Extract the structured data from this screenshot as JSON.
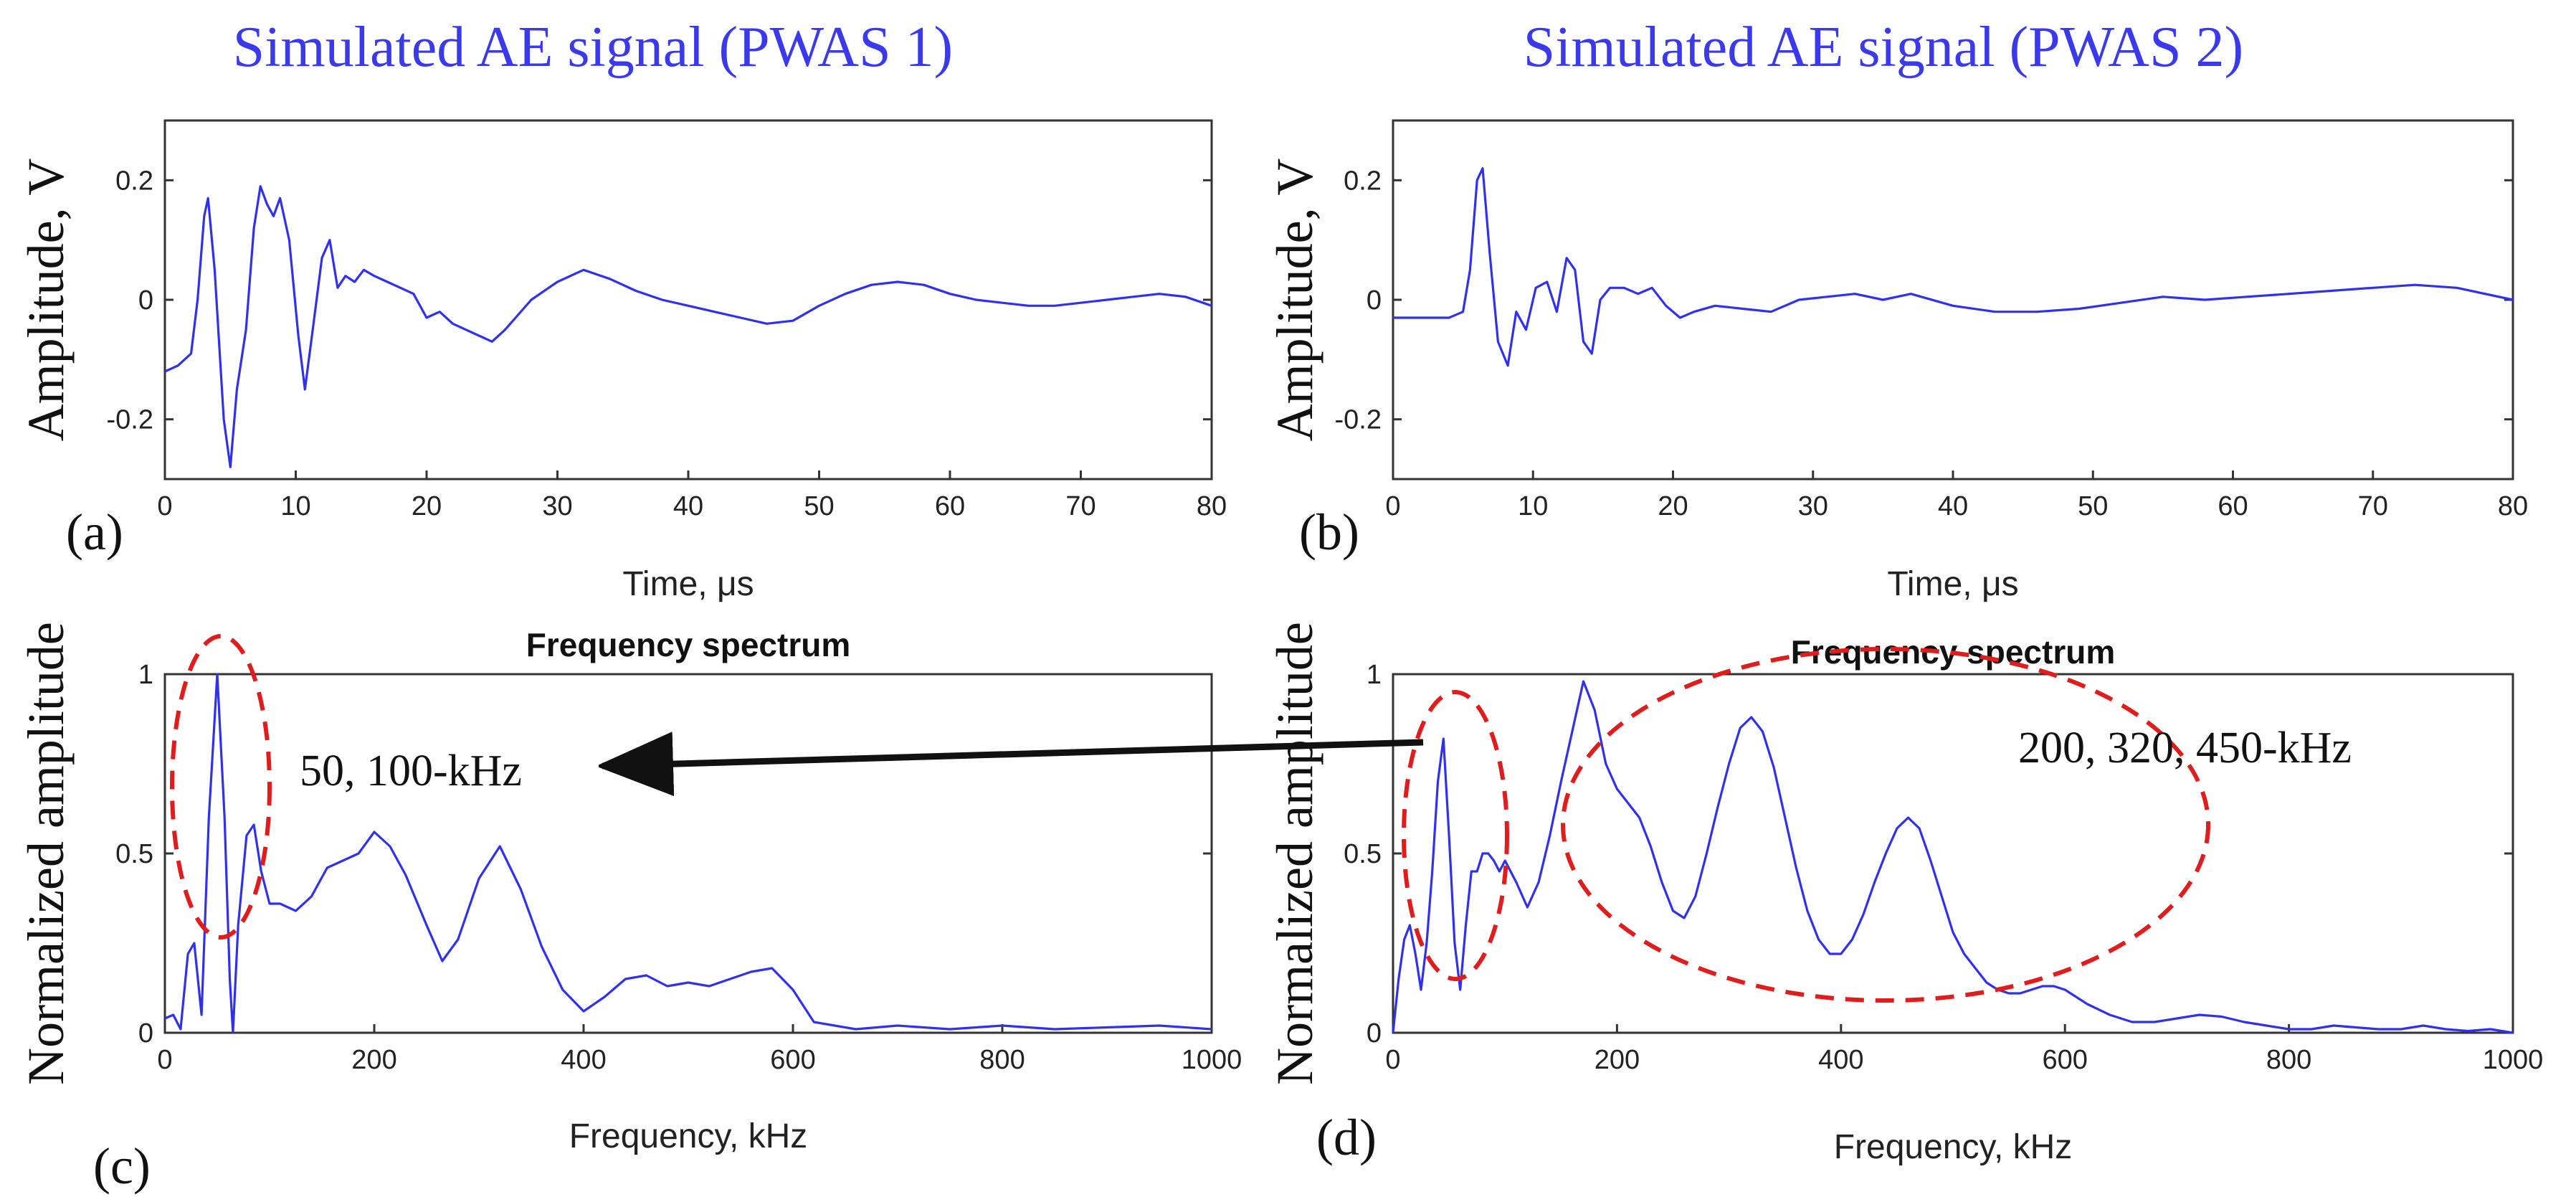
{
  "titles": {
    "left": "Simulated AE signal (PWAS 1)",
    "right": "Simulated AE signal (PWAS 2)"
  },
  "annotations": {
    "left_peaks": "50, 100-kHz",
    "right_peaks": "200, 320, 450-kHz"
  },
  "colors": {
    "title": "#3a3aec",
    "signal": "#3030f0",
    "highlight_ellipse": "#e01c1c",
    "arrow": "#111111"
  },
  "chart_data": [
    {
      "panel": "(a)",
      "type": "line",
      "title": "",
      "xlabel": "Time, μs",
      "ylabel": "Amplitude, V",
      "xlim": [
        0,
        80
      ],
      "ylim": [
        -0.3,
        0.3
      ],
      "xticks": [
        "0",
        "10",
        "20",
        "30",
        "40",
        "50",
        "60",
        "70",
        "80"
      ],
      "yticks": [
        "0.2",
        "0",
        "-0.2"
      ],
      "x": [
        0,
        1,
        2,
        2.5,
        3,
        3.3,
        3.8,
        4.5,
        5,
        5.5,
        6.2,
        6.8,
        7.3,
        7.8,
        8.3,
        8.8,
        9.5,
        10.2,
        10.7,
        11.3,
        12,
        12.6,
        13.2,
        13.8,
        14.5,
        15.2,
        16,
        17,
        18,
        19,
        20,
        21,
        22,
        23,
        24,
        25,
        26,
        28,
        30,
        32,
        34,
        36,
        38,
        40,
        42,
        44,
        46,
        48,
        50,
        52,
        54,
        56,
        58,
        60,
        62,
        64,
        66,
        68,
        70,
        72,
        74,
        76,
        78,
        80
      ],
      "y": [
        -0.12,
        -0.11,
        -0.09,
        0.0,
        0.14,
        0.17,
        0.05,
        -0.2,
        -0.28,
        -0.15,
        -0.05,
        0.12,
        0.19,
        0.16,
        0.14,
        0.17,
        0.1,
        -0.06,
        -0.15,
        -0.05,
        0.07,
        0.1,
        0.02,
        0.04,
        0.03,
        0.05,
        0.04,
        0.03,
        0.02,
        0.01,
        -0.03,
        -0.02,
        -0.04,
        -0.05,
        -0.06,
        -0.07,
        -0.05,
        0.0,
        0.03,
        0.05,
        0.035,
        0.015,
        0.0,
        -0.01,
        -0.02,
        -0.03,
        -0.04,
        -0.035,
        -0.01,
        0.01,
        0.025,
        0.03,
        0.025,
        0.01,
        0.0,
        -0.005,
        -0.01,
        -0.01,
        -0.005,
        0.0,
        0.005,
        0.01,
        0.005,
        -0.01
      ]
    },
    {
      "panel": "(b)",
      "type": "line",
      "title": "",
      "xlabel": "Time, μs",
      "ylabel": "Amplitude, V",
      "xlim": [
        0,
        80
      ],
      "ylim": [
        -0.3,
        0.3
      ],
      "xticks": [
        "0",
        "10",
        "20",
        "30",
        "40",
        "50",
        "60",
        "70",
        "80"
      ],
      "yticks": [
        "0.2",
        "0",
        "-0.2"
      ],
      "x": [
        0,
        2,
        4,
        5,
        5.5,
        6,
        6.4,
        6.9,
        7.5,
        8.2,
        8.8,
        9.5,
        10.2,
        11,
        11.7,
        12.4,
        13,
        13.6,
        14.2,
        14.8,
        15.5,
        16.5,
        17.5,
        18.5,
        19.5,
        20.5,
        21.5,
        23,
        25,
        27,
        29,
        31,
        33,
        35,
        37,
        40,
        43,
        46,
        49,
        52,
        55,
        58,
        61,
        64,
        67,
        70,
        73,
        76,
        80
      ],
      "y": [
        -0.03,
        -0.03,
        -0.03,
        -0.02,
        0.05,
        0.2,
        0.22,
        0.08,
        -0.07,
        -0.11,
        -0.02,
        -0.05,
        0.02,
        0.03,
        -0.02,
        0.07,
        0.05,
        -0.07,
        -0.09,
        0.0,
        0.02,
        0.02,
        0.01,
        0.02,
        -0.01,
        -0.03,
        -0.02,
        -0.01,
        -0.015,
        -0.02,
        0.0,
        0.005,
        0.01,
        0.0,
        0.01,
        -0.01,
        -0.02,
        -0.02,
        -0.015,
        -0.005,
        0.005,
        0.0,
        0.005,
        0.01,
        0.015,
        0.02,
        0.025,
        0.02,
        0.0
      ]
    },
    {
      "panel": "(c)",
      "type": "line",
      "title": "Frequency spectrum",
      "xlabel": "Frequency, kHz",
      "ylabel": "Normalized amplitude",
      "xlim": [
        0,
        1000
      ],
      "ylim": [
        0,
        1
      ],
      "xticks": [
        "0",
        "200",
        "400",
        "600",
        "800",
        "1000"
      ],
      "yticks": [
        "1",
        "0.5",
        "0"
      ],
      "x": [
        0,
        8,
        15,
        22,
        28,
        35,
        42,
        50,
        57,
        62,
        65,
        70,
        78,
        85,
        92,
        100,
        110,
        125,
        140,
        155,
        170,
        185,
        200,
        215,
        230,
        250,
        265,
        280,
        300,
        320,
        340,
        360,
        380,
        400,
        420,
        440,
        460,
        480,
        500,
        520,
        540,
        560,
        580,
        600,
        620,
        660,
        700,
        750,
        800,
        850,
        900,
        950,
        1000
      ],
      "y": [
        0.04,
        0.05,
        0.01,
        0.22,
        0.25,
        0.05,
        0.6,
        1.0,
        0.6,
        0.15,
        0.0,
        0.3,
        0.55,
        0.58,
        0.45,
        0.36,
        0.36,
        0.34,
        0.38,
        0.46,
        0.48,
        0.5,
        0.56,
        0.52,
        0.44,
        0.3,
        0.2,
        0.26,
        0.43,
        0.52,
        0.4,
        0.24,
        0.12,
        0.06,
        0.1,
        0.15,
        0.16,
        0.13,
        0.14,
        0.13,
        0.15,
        0.17,
        0.18,
        0.12,
        0.03,
        0.01,
        0.02,
        0.01,
        0.02,
        0.01,
        0.015,
        0.02,
        0.01
      ]
    },
    {
      "panel": "(d)",
      "type": "line",
      "title": "Frequency spectrum",
      "xlabel": "Frequency, kHz",
      "ylabel": "Normalized amplitude",
      "xlim": [
        0,
        1000
      ],
      "ylim": [
        0,
        1
      ],
      "xticks": [
        "0",
        "200",
        "400",
        "600",
        "800",
        "1000"
      ],
      "yticks": [
        "1",
        "0.5",
        "0"
      ],
      "x": [
        0,
        5,
        10,
        15,
        20,
        25,
        30,
        35,
        40,
        45,
        50,
        55,
        60,
        65,
        70,
        75,
        80,
        85,
        90,
        95,
        100,
        110,
        120,
        130,
        140,
        150,
        160,
        170,
        180,
        190,
        200,
        210,
        220,
        230,
        240,
        250,
        260,
        270,
        280,
        290,
        300,
        310,
        320,
        330,
        340,
        350,
        360,
        370,
        380,
        390,
        400,
        410,
        420,
        430,
        440,
        450,
        460,
        470,
        480,
        490,
        500,
        510,
        520,
        530,
        540,
        550,
        560,
        570,
        580,
        590,
        600,
        620,
        640,
        660,
        680,
        700,
        720,
        740,
        760,
        780,
        800,
        820,
        840,
        860,
        880,
        900,
        920,
        940,
        960,
        980,
        1000
      ],
      "y": [
        0.0,
        0.15,
        0.26,
        0.3,
        0.22,
        0.12,
        0.25,
        0.45,
        0.7,
        0.82,
        0.55,
        0.25,
        0.12,
        0.3,
        0.45,
        0.45,
        0.5,
        0.5,
        0.48,
        0.45,
        0.48,
        0.42,
        0.35,
        0.42,
        0.55,
        0.7,
        0.84,
        0.98,
        0.9,
        0.75,
        0.68,
        0.64,
        0.6,
        0.52,
        0.42,
        0.34,
        0.32,
        0.38,
        0.5,
        0.63,
        0.75,
        0.85,
        0.88,
        0.84,
        0.74,
        0.6,
        0.46,
        0.34,
        0.26,
        0.22,
        0.22,
        0.26,
        0.33,
        0.42,
        0.5,
        0.57,
        0.6,
        0.57,
        0.48,
        0.38,
        0.28,
        0.22,
        0.18,
        0.14,
        0.12,
        0.11,
        0.11,
        0.12,
        0.13,
        0.13,
        0.12,
        0.08,
        0.05,
        0.03,
        0.03,
        0.04,
        0.05,
        0.045,
        0.03,
        0.02,
        0.01,
        0.01,
        0.02,
        0.015,
        0.01,
        0.01,
        0.02,
        0.01,
        0.005,
        0.01,
        0.0
      ]
    }
  ]
}
